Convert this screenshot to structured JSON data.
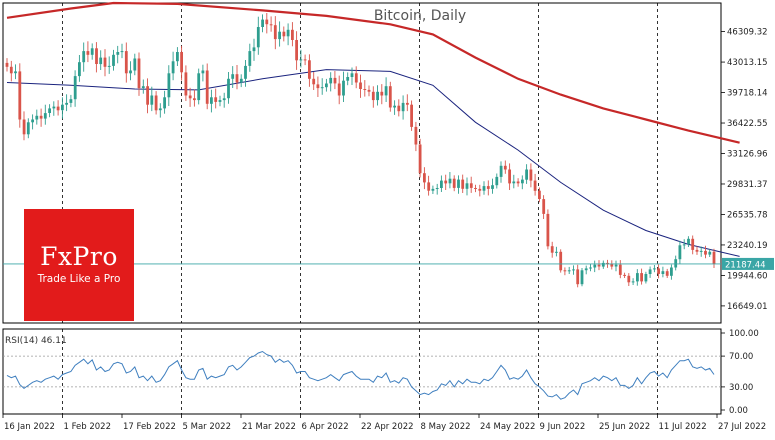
{
  "chart_data": {
    "type": "candlestick",
    "title": "Bitcoin, Daily",
    "price_axis_ticks": [
      "46309.32",
      "43013.15",
      "39718.14",
      "36422.55",
      "33126.96",
      "29831.37",
      "26535.78",
      "23240.19",
      "19944.60",
      "16649.01"
    ],
    "price_ylim": [
      14800,
      49400
    ],
    "last_price_label": "21187.44",
    "last_price": 21187.44,
    "date_ticks": [
      "16 Jan 2022",
      "1 Feb 2022",
      "17 Feb 2022",
      "5 Mar 2022",
      "21 Mar 2022",
      "6 Apr 2022",
      "22 Apr 2022",
      "8 May 2022",
      "24 May 2022",
      "9 Jun 2022",
      "25 Jun 2022",
      "11 Jul 2022",
      "27 Jul 2022"
    ],
    "vertical_grid_dates": [
      "1 Feb 2022",
      "5 Mar 2022",
      "6 Apr 2022",
      "8 May 2022",
      "9 Jun 2022",
      "11 Jul 2022"
    ],
    "closes": [
      42500,
      41800,
      42000,
      36800,
      35200,
      36500,
      36800,
      37200,
      36900,
      37500,
      38000,
      38200,
      37800,
      38400,
      38600,
      39000,
      41500,
      43000,
      44200,
      43800,
      44500,
      42800,
      43500,
      42500,
      42600,
      43800,
      44100,
      44200,
      41800,
      42100,
      43400,
      40200,
      40400,
      38400,
      39400,
      37800,
      38000,
      39200,
      41800,
      43100,
      44100,
      41900,
      39400,
      39100,
      38900,
      41800,
      42100,
      38500,
      39200,
      38700,
      38900,
      39100,
      41200,
      41700,
      40800,
      41200,
      42600,
      44200,
      44600,
      46800,
      47600,
      47100,
      47000,
      45500,
      46300,
      45800,
      46500,
      45400,
      43200,
      43300,
      43200,
      41200,
      40600,
      40200,
      40300,
      40700,
      41300,
      40700,
      39400,
      41000,
      41400,
      41800,
      40800,
      40100,
      40000,
      39800,
      38900,
      39800,
      39400,
      40400,
      38100,
      38300,
      37700,
      38600,
      38400,
      36000,
      34100,
      31000,
      30000,
      29100,
      29300,
      29400,
      30200,
      29900,
      30400,
      29400,
      30300,
      29300,
      29900,
      29400,
      29300,
      29100,
      29600,
      29300,
      29700,
      30600,
      31800,
      31400,
      29900,
      30100,
      29900,
      30300,
      31400,
      30200,
      29100,
      28200,
      26600,
      23100,
      22400,
      22500,
      20500,
      20400,
      20500,
      20600,
      19000,
      20500,
      20700,
      20800,
      21100,
      20900,
      21300,
      21200,
      20900,
      21100,
      20000,
      19900,
      19200,
      19300,
      20200,
      19300,
      20100,
      20600,
      20700,
      20100,
      20400,
      19900,
      20800,
      21700,
      23200,
      23300,
      23900,
      22700,
      22500,
      22600,
      22200,
      22500,
      21187.44
    ],
    "ma_fast_points": [
      [
        0,
        40800
      ],
      [
        15,
        40500
      ],
      [
        30,
        40100
      ],
      [
        45,
        40000
      ],
      [
        60,
        41200
      ],
      [
        75,
        42200
      ],
      [
        90,
        42000
      ],
      [
        100,
        40500
      ],
      [
        110,
        36500
      ],
      [
        120,
        33500
      ],
      [
        130,
        30000
      ],
      [
        140,
        27000
      ],
      [
        150,
        24800
      ],
      [
        160,
        23300
      ],
      [
        172,
        22000
      ]
    ],
    "ma_slow_points": [
      [
        0,
        47800
      ],
      [
        15,
        48800
      ],
      [
        25,
        49400
      ],
      [
        40,
        49300
      ],
      [
        60,
        48600
      ],
      [
        75,
        48000
      ],
      [
        90,
        47100
      ],
      [
        100,
        46000
      ],
      [
        110,
        43500
      ],
      [
        120,
        41200
      ],
      [
        130,
        39500
      ],
      [
        140,
        38000
      ],
      [
        150,
        36800
      ],
      [
        160,
        35600
      ],
      [
        172,
        34300
      ]
    ],
    "rsi": {
      "label": "RSI(14) 46.11",
      "value": 46.11,
      "axis_ticks": [
        "100.00",
        "70.00",
        "30.00",
        "0.00"
      ],
      "levels": [
        70,
        30
      ],
      "values": [
        45,
        42,
        44,
        33,
        28,
        32,
        36,
        38,
        36,
        40,
        42,
        44,
        40,
        46,
        48,
        50,
        58,
        62,
        66,
        60,
        65,
        52,
        56,
        50,
        52,
        60,
        62,
        60,
        48,
        50,
        56,
        42,
        44,
        38,
        44,
        36,
        38,
        46,
        56,
        60,
        64,
        52,
        42,
        40,
        40,
        52,
        54,
        40,
        44,
        42,
        44,
        46,
        56,
        58,
        52,
        56,
        62,
        68,
        70,
        74,
        76,
        72,
        70,
        62,
        66,
        62,
        64,
        58,
        48,
        50,
        50,
        42,
        40,
        38,
        40,
        42,
        46,
        42,
        38,
        46,
        48,
        50,
        44,
        40,
        40,
        40,
        36,
        44,
        42,
        48,
        36,
        38,
        35,
        42,
        40,
        30,
        25,
        20,
        22,
        20,
        24,
        26,
        34,
        32,
        38,
        30,
        38,
        34,
        40,
        36,
        36,
        34,
        40,
        38,
        42,
        50,
        58,
        52,
        40,
        42,
        40,
        44,
        52,
        42,
        34,
        30,
        25,
        18,
        17,
        20,
        14,
        16,
        22,
        26,
        20,
        34,
        36,
        38,
        42,
        38,
        44,
        42,
        38,
        42,
        32,
        32,
        28,
        32,
        42,
        34,
        42,
        48,
        50,
        44,
        48,
        42,
        52,
        58,
        64,
        64,
        66,
        56,
        54,
        56,
        52,
        54,
        46.11
      ]
    },
    "colors": {
      "up": "#2e9e8f",
      "down": "#d9544a",
      "ma_fast": "#1a237e",
      "ma_slow": "#c62828",
      "rsi_line": "#3f7fbf",
      "price_line": "#3aa6a6",
      "grid": "#000000"
    }
  },
  "brand": {
    "logo_text": "FxPro",
    "tagline": "Trade Like a Pro",
    "color": "#e21b1b"
  }
}
